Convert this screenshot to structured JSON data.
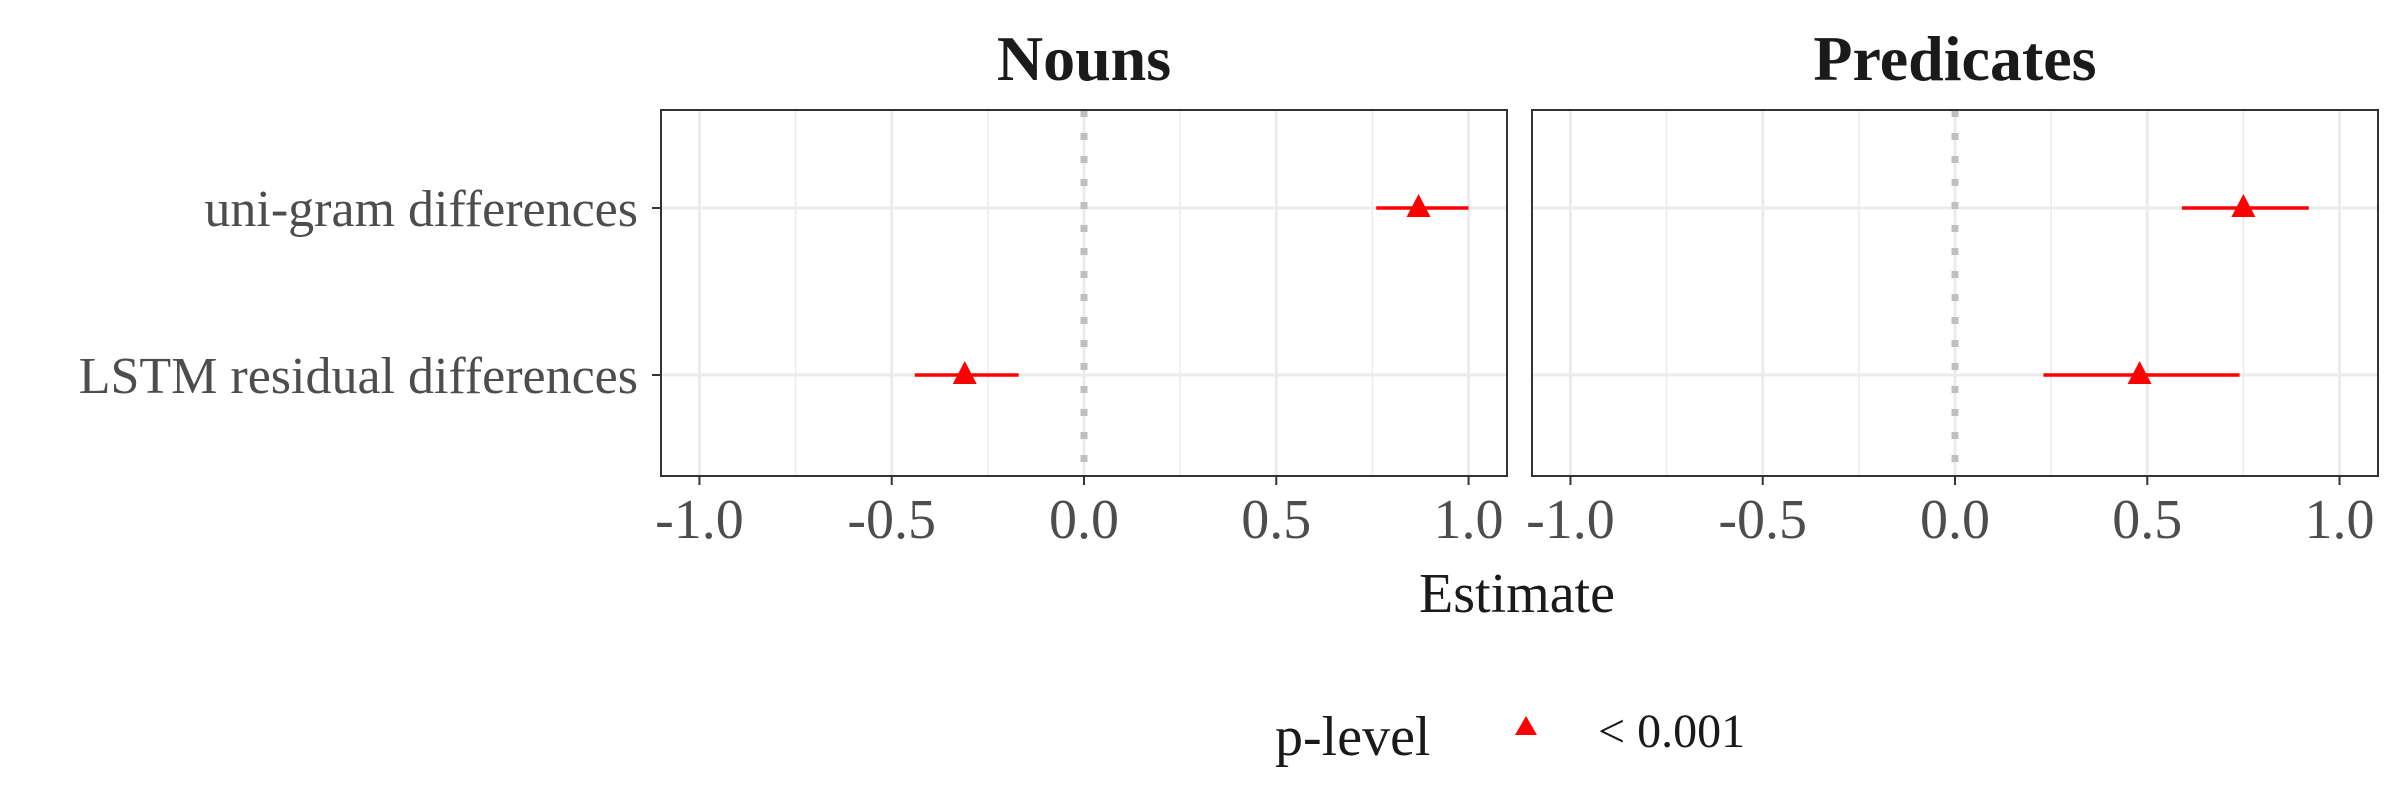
{
  "chart_data": {
    "type": "scatter",
    "xlabel": "Estimate",
    "xlim": [
      -1.1,
      1.1
    ],
    "x_ticks": [
      -1.0,
      -0.5,
      0.0,
      0.5,
      1.0
    ],
    "x_tick_labels": [
      "-1.0",
      "-0.5",
      "0.0",
      "0.5",
      "1.0"
    ],
    "reference_line_x": 0.0,
    "grid": true,
    "categories": [
      "uni-gram differences",
      "LSTM residual differences"
    ],
    "panels": [
      {
        "title": "Nouns",
        "points": [
          {
            "category": "uni-gram differences",
            "estimate": 0.87,
            "ci_low": 0.76,
            "ci_high": 1.0,
            "p_level": "< 0.001"
          },
          {
            "category": "LSTM residual differences",
            "estimate": -0.31,
            "ci_low": -0.44,
            "ci_high": -0.17,
            "p_level": "< 0.001"
          }
        ]
      },
      {
        "title": "Predicates",
        "points": [
          {
            "category": "uni-gram differences",
            "estimate": 0.75,
            "ci_low": 0.59,
            "ci_high": 0.92,
            "p_level": "< 0.001"
          },
          {
            "category": "LSTM residual differences",
            "estimate": 0.48,
            "ci_low": 0.23,
            "ci_high": 0.74,
            "p_level": "< 0.001"
          }
        ]
      }
    ],
    "legend": {
      "title": "p-level",
      "position": "bottom",
      "items": [
        {
          "label": "< 0.001",
          "color": "#ff0000",
          "shape": "triangle"
        }
      ]
    },
    "colors": {
      "point": "#ff0000",
      "grid": "#ebebeb",
      "reference_line": "#bfbfbf",
      "panel_border": "#333333"
    }
  }
}
